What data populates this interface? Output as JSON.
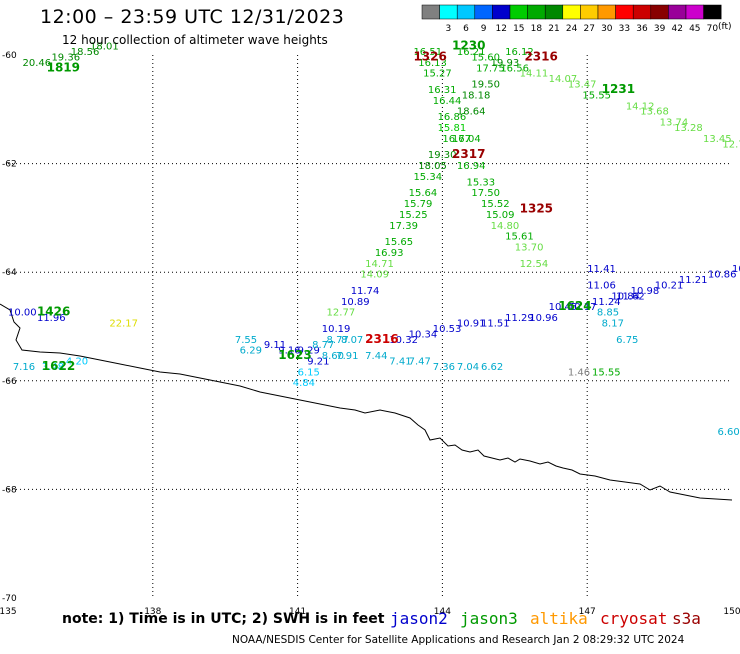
{
  "header": {
    "title": "12:00 – 23:59 UTC 12/31/2023",
    "subtitle": "12 hour collection of altimeter wave heights"
  },
  "legend": {
    "unit": "(ft)",
    "bins": [
      {
        "label": "",
        "color": "#808080"
      },
      {
        "label": "3",
        "color": "#00ffff"
      },
      {
        "label": "6",
        "color": "#00c8ff"
      },
      {
        "label": "9",
        "color": "#0066ff"
      },
      {
        "label": "12",
        "color": "#0000cc"
      },
      {
        "label": "15",
        "color": "#00cc00"
      },
      {
        "label": "18",
        "color": "#00aa00"
      },
      {
        "label": "21",
        "color": "#008800"
      },
      {
        "label": "24",
        "color": "#ffff00"
      },
      {
        "label": "27",
        "color": "#ffcc00"
      },
      {
        "label": "30",
        "color": "#ff9900"
      },
      {
        "label": "33",
        "color": "#ff0000"
      },
      {
        "label": "36",
        "color": "#cc0000"
      },
      {
        "label": "39",
        "color": "#880000"
      },
      {
        "label": "42",
        "color": "#990099"
      },
      {
        "label": "45",
        "color": "#cc00cc"
      },
      {
        "label": "70",
        "color": "#000000"
      }
    ]
  },
  "map": {
    "lon_min": 135,
    "lon_max": 150,
    "lat_min": -70,
    "lat_max": -60,
    "x_ticks": [
      "135",
      "138",
      "141",
      "144",
      "147",
      "150"
    ],
    "y_ticks": [
      "-60",
      "-62",
      "-64",
      "-66",
      "-68",
      "-70"
    ],
    "colors": {
      "jason2": "#0000cc",
      "jason3": "#009900",
      "altika": "#ff9900",
      "cryosat": "#cc0000",
      "s3a": "#990000"
    },
    "observations": [
      {
        "lon": 135.3,
        "lat": -60.2,
        "v": "20.46",
        "c": "#008800"
      },
      {
        "lon": 135.9,
        "lat": -60.1,
        "v": "19.36",
        "c": "#008800"
      },
      {
        "lon": 136.3,
        "lat": -60.0,
        "v": "18.56",
        "c": "#008800"
      },
      {
        "lon": 136.7,
        "lat": -59.9,
        "v": "18.01",
        "c": "#008800"
      },
      {
        "lon": 143.4,
        "lat": -60.0,
        "v": "16.51",
        "c": "#00aa00"
      },
      {
        "lon": 143.5,
        "lat": -60.2,
        "v": "16.13",
        "c": "#00aa00"
      },
      {
        "lon": 143.6,
        "lat": -60.4,
        "v": "15.27",
        "c": "#00aa00"
      },
      {
        "lon": 143.7,
        "lat": -60.7,
        "v": "16.31",
        "c": "#00aa00"
      },
      {
        "lon": 143.8,
        "lat": -60.9,
        "v": "16.44",
        "c": "#00aa00"
      },
      {
        "lon": 143.9,
        "lat": -61.2,
        "v": "16.86",
        "c": "#00aa00"
      },
      {
        "lon": 143.9,
        "lat": -61.4,
        "v": "15.81",
        "c": "#00cc00"
      },
      {
        "lon": 144.0,
        "lat": -61.6,
        "v": "16.67",
        "c": "#00aa00"
      },
      {
        "lon": 143.7,
        "lat": -61.9,
        "v": "19.30",
        "c": "#008800"
      },
      {
        "lon": 143.5,
        "lat": -62.1,
        "v": "18.05",
        "c": "#008800"
      },
      {
        "lon": 143.4,
        "lat": -62.3,
        "v": "15.34",
        "c": "#00aa00"
      },
      {
        "lon": 143.3,
        "lat": -62.6,
        "v": "15.64",
        "c": "#00aa00"
      },
      {
        "lon": 143.2,
        "lat": -62.8,
        "v": "15.79",
        "c": "#00aa00"
      },
      {
        "lon": 143.1,
        "lat": -63.0,
        "v": "15.25",
        "c": "#00aa00"
      },
      {
        "lon": 142.9,
        "lat": -63.2,
        "v": "17.39",
        "c": "#00aa00"
      },
      {
        "lon": 142.8,
        "lat": -63.5,
        "v": "15.65",
        "c": "#00aa00"
      },
      {
        "lon": 142.6,
        "lat": -63.7,
        "v": "16.93",
        "c": "#00aa00"
      },
      {
        "lon": 142.4,
        "lat": -63.9,
        "v": "14.71",
        "c": "#66dd44"
      },
      {
        "lon": 142.3,
        "lat": -64.1,
        "v": "14.09",
        "c": "#66dd44"
      },
      {
        "lon": 142.1,
        "lat": -64.4,
        "v": "11.74",
        "c": "#0000cc"
      },
      {
        "lon": 141.9,
        "lat": -64.6,
        "v": "10.89",
        "c": "#0000cc"
      },
      {
        "lon": 141.6,
        "lat": -64.8,
        "v": "12.77",
        "c": "#66dd44"
      },
      {
        "lon": 141.5,
        "lat": -65.1,
        "v": "10.19",
        "c": "#0000cc"
      },
      {
        "lon": 144.3,
        "lat": -60.0,
        "v": "16.21",
        "c": "#00aa00"
      },
      {
        "lon": 144.6,
        "lat": -60.1,
        "v": "15.60",
        "c": "#00aa00"
      },
      {
        "lon": 144.7,
        "lat": -60.3,
        "v": "17.75",
        "c": "#00aa00"
      },
      {
        "lon": 144.6,
        "lat": -60.6,
        "v": "19.50",
        "c": "#008800"
      },
      {
        "lon": 144.4,
        "lat": -60.8,
        "v": "18.18",
        "c": "#008800"
      },
      {
        "lon": 144.3,
        "lat": -61.1,
        "v": "18.64",
        "c": "#008800"
      },
      {
        "lon": 144.2,
        "lat": -61.6,
        "v": "17.04",
        "c": "#00aa00"
      },
      {
        "lon": 144.3,
        "lat": -62.1,
        "v": "16.94",
        "c": "#00aa00"
      },
      {
        "lon": 144.5,
        "lat": -62.4,
        "v": "15.33",
        "c": "#00aa00"
      },
      {
        "lon": 144.6,
        "lat": -62.6,
        "v": "17.50",
        "c": "#00aa00"
      },
      {
        "lon": 144.8,
        "lat": -62.8,
        "v": "15.52",
        "c": "#00aa00"
      },
      {
        "lon": 144.9,
        "lat": -63.0,
        "v": "15.09",
        "c": "#00aa00"
      },
      {
        "lon": 145.0,
        "lat": -63.2,
        "v": "14.80",
        "c": "#66dd44"
      },
      {
        "lon": 145.3,
        "lat": -63.4,
        "v": "15.61",
        "c": "#00aa00"
      },
      {
        "lon": 145.5,
        "lat": -63.6,
        "v": "13.70",
        "c": "#66dd44"
      },
      {
        "lon": 145.6,
        "lat": -63.9,
        "v": "12.54",
        "c": "#66dd44"
      },
      {
        "lon": 145.0,
        "lat": -60.2,
        "v": "19.93",
        "c": "#008800"
      },
      {
        "lon": 145.2,
        "lat": -60.3,
        "v": "16.56",
        "c": "#00aa00"
      },
      {
        "lon": 145.3,
        "lat": -60.0,
        "v": "16.12",
        "c": "#00aa00"
      },
      {
        "lon": 145.6,
        "lat": -60.4,
        "v": "14.11",
        "c": "#66dd44"
      },
      {
        "lon": 146.2,
        "lat": -60.5,
        "v": "14.07",
        "c": "#66dd44"
      },
      {
        "lon": 146.6,
        "lat": -60.6,
        "v": "13.47",
        "c": "#66dd44"
      },
      {
        "lon": 146.9,
        "lat": -60.8,
        "v": "15.55",
        "c": "#00aa00"
      },
      {
        "lon": 147.8,
        "lat": -61.0,
        "v": "14.12",
        "c": "#66dd44"
      },
      {
        "lon": 148.1,
        "lat": -61.1,
        "v": "13.68",
        "c": "#66dd44"
      },
      {
        "lon": 148.5,
        "lat": -61.3,
        "v": "13.74",
        "c": "#66dd44"
      },
      {
        "lon": 148.8,
        "lat": -61.4,
        "v": "13.28",
        "c": "#66dd44"
      },
      {
        "lon": 149.4,
        "lat": -61.6,
        "v": "13.45",
        "c": "#66dd44"
      },
      {
        "lon": 149.8,
        "lat": -61.7,
        "v": "12.73",
        "c": "#66dd44"
      },
      {
        "lon": 150.2,
        "lat": -61.8,
        "v": "12.81",
        "c": "#66dd44"
      },
      {
        "lon": 135.0,
        "lat": -64.8,
        "v": "10.00",
        "c": "#0000cc"
      },
      {
        "lon": 135.6,
        "lat": -64.9,
        "v": "11.96",
        "c": "#0000cc"
      },
      {
        "lon": 137.1,
        "lat": -65.0,
        "v": "22.17",
        "c": "#dddd00"
      },
      {
        "lon": 139.7,
        "lat": -65.3,
        "v": "7.55",
        "c": "#00aacc"
      },
      {
        "lon": 139.8,
        "lat": -65.5,
        "v": "6.29",
        "c": "#00aacc"
      },
      {
        "lon": 140.3,
        "lat": -65.4,
        "v": "9.11",
        "c": "#0000cc"
      },
      {
        "lon": 140.6,
        "lat": -65.5,
        "v": "9.16",
        "c": "#0000cc"
      },
      {
        "lon": 141.0,
        "lat": -65.5,
        "v": "9.29",
        "c": "#0000cc"
      },
      {
        "lon": 141.3,
        "lat": -65.4,
        "v": "8.77",
        "c": "#00aacc"
      },
      {
        "lon": 141.6,
        "lat": -65.3,
        "v": "8.77",
        "c": "#00aacc"
      },
      {
        "lon": 141.9,
        "lat": -65.3,
        "v": "8.07",
        "c": "#00aacc"
      },
      {
        "lon": 141.2,
        "lat": -65.7,
        "v": "9.21",
        "c": "#0000cc"
      },
      {
        "lon": 141.5,
        "lat": -65.6,
        "v": "8.60",
        "c": "#00aacc"
      },
      {
        "lon": 141.8,
        "lat": -65.6,
        "v": "7.91",
        "c": "#00aacc"
      },
      {
        "lon": 142.4,
        "lat": -65.6,
        "v": "7.44",
        "c": "#00aacc"
      },
      {
        "lon": 142.9,
        "lat": -65.7,
        "v": "7.41",
        "c": "#00aacc"
      },
      {
        "lon": 143.3,
        "lat": -65.7,
        "v": "7.47",
        "c": "#00aacc"
      },
      {
        "lon": 143.8,
        "lat": -65.8,
        "v": "7.36",
        "c": "#00aacc"
      },
      {
        "lon": 144.3,
        "lat": -65.8,
        "v": "7.04",
        "c": "#00aacc"
      },
      {
        "lon": 144.8,
        "lat": -65.8,
        "v": "6.62",
        "c": "#00aacc"
      },
      {
        "lon": 141.0,
        "lat": -65.9,
        "v": "6.15",
        "c": "#00ccff"
      },
      {
        "lon": 140.9,
        "lat": -66.1,
        "v": "4.84",
        "c": "#00ccff"
      },
      {
        "lon": 142.9,
        "lat": -65.3,
        "v": "10.32",
        "c": "#0000cc"
      },
      {
        "lon": 143.3,
        "lat": -65.2,
        "v": "10.34",
        "c": "#0000cc"
      },
      {
        "lon": 143.8,
        "lat": -65.1,
        "v": "10.53",
        "c": "#0000cc"
      },
      {
        "lon": 144.3,
        "lat": -65.0,
        "v": "10.91",
        "c": "#0000cc"
      },
      {
        "lon": 144.8,
        "lat": -65.0,
        "v": "11.51",
        "c": "#0000cc"
      },
      {
        "lon": 145.3,
        "lat": -64.9,
        "v": "11.29",
        "c": "#0000cc"
      },
      {
        "lon": 145.8,
        "lat": -64.9,
        "v": "10.96",
        "c": "#0000cc"
      },
      {
        "lon": 146.2,
        "lat": -64.7,
        "v": "10.45",
        "c": "#0000cc"
      },
      {
        "lon": 146.6,
        "lat": -64.7,
        "v": "10.17",
        "c": "#0000cc"
      },
      {
        "lon": 147.1,
        "lat": -64.6,
        "v": "11.24",
        "c": "#0000cc"
      },
      {
        "lon": 147.5,
        "lat": -64.5,
        "v": "10.84",
        "c": "#0000cc"
      },
      {
        "lon": 147.9,
        "lat": -64.4,
        "v": "10.98",
        "c": "#0000cc"
      },
      {
        "lon": 148.4,
        "lat": -64.3,
        "v": "10.21",
        "c": "#0000cc"
      },
      {
        "lon": 148.9,
        "lat": -64.2,
        "v": "11.21",
        "c": "#0000cc"
      },
      {
        "lon": 149.5,
        "lat": -64.1,
        "v": "10.86",
        "c": "#0000cc"
      },
      {
        "lon": 150.0,
        "lat": -64.0,
        "v": "10.61",
        "c": "#0000cc"
      },
      {
        "lon": 147.0,
        "lat": -64.0,
        "v": "11.41",
        "c": "#0000cc"
      },
      {
        "lon": 147.0,
        "lat": -64.3,
        "v": "11.06",
        "c": "#0000cc"
      },
      {
        "lon": 147.6,
        "lat": -64.5,
        "v": "11.62",
        "c": "#0000cc"
      },
      {
        "lon": 147.2,
        "lat": -64.8,
        "v": "8.85",
        "c": "#00aacc"
      },
      {
        "lon": 147.3,
        "lat": -65.0,
        "v": "8.17",
        "c": "#00aacc"
      },
      {
        "lon": 147.6,
        "lat": -65.3,
        "v": "6.75",
        "c": "#00aacc"
      },
      {
        "lon": 135.1,
        "lat": -65.8,
        "v": "7.16",
        "c": "#00aacc"
      },
      {
        "lon": 135.7,
        "lat": -65.8,
        "v": "3.48",
        "c": "#00ccff"
      },
      {
        "lon": 136.2,
        "lat": -65.7,
        "v": "4.20",
        "c": "#00ccff"
      },
      {
        "lon": 146.6,
        "lat": -65.9,
        "v": "1.46",
        "c": "#808080"
      },
      {
        "lon": 147.1,
        "lat": -65.9,
        "v": "15.55",
        "c": "#00aa00"
      },
      {
        "lon": 149.7,
        "lat": -67.0,
        "v": "6.60",
        "c": "#00aacc"
      }
    ],
    "passes": [
      {
        "lon": 135.8,
        "lat": -60.3,
        "t": "1819",
        "c": "#009900"
      },
      {
        "lon": 143.4,
        "lat": -60.1,
        "t": "1326",
        "c": "#990000"
      },
      {
        "lon": 144.2,
        "lat": -59.9,
        "t": "1230",
        "c": "#009900"
      },
      {
        "lon": 145.7,
        "lat": -60.1,
        "t": "2316",
        "c": "#990000"
      },
      {
        "lon": 147.3,
        "lat": -60.7,
        "t": "1231",
        "c": "#009900"
      },
      {
        "lon": 144.2,
        "lat": -61.9,
        "t": "2317",
        "c": "#990000"
      },
      {
        "lon": 145.6,
        "lat": -62.9,
        "t": "1325",
        "c": "#990000"
      },
      {
        "lon": 135.6,
        "lat": -64.8,
        "t": "1426",
        "c": "#009900"
      },
      {
        "lon": 146.4,
        "lat": -64.7,
        "t": "1624",
        "c": "#009900"
      },
      {
        "lon": 142.4,
        "lat": -65.3,
        "t": "2316",
        "c": "#cc0000"
      },
      {
        "lon": 140.6,
        "lat": -65.6,
        "t": "1623",
        "c": "#009900"
      },
      {
        "lon": 135.7,
        "lat": -65.8,
        "t": "1622",
        "c": "#009900"
      }
    ]
  },
  "footer": {
    "note": "note: 1) Time is in UTC; 2) SWH is in feet",
    "satellites": [
      {
        "name": "jason2",
        "color": "#0000cc"
      },
      {
        "name": "jason3",
        "color": "#009900"
      },
      {
        "name": "altika",
        "color": "#ff9900"
      },
      {
        "name": "cryosat",
        "color": "#cc0000"
      },
      {
        "name": "s3a",
        "color": "#990000"
      }
    ],
    "credit": "NOAA/NESDIS Center for Satellite Applications and Research   Jan  2 08:29:32 UTC 2024"
  }
}
